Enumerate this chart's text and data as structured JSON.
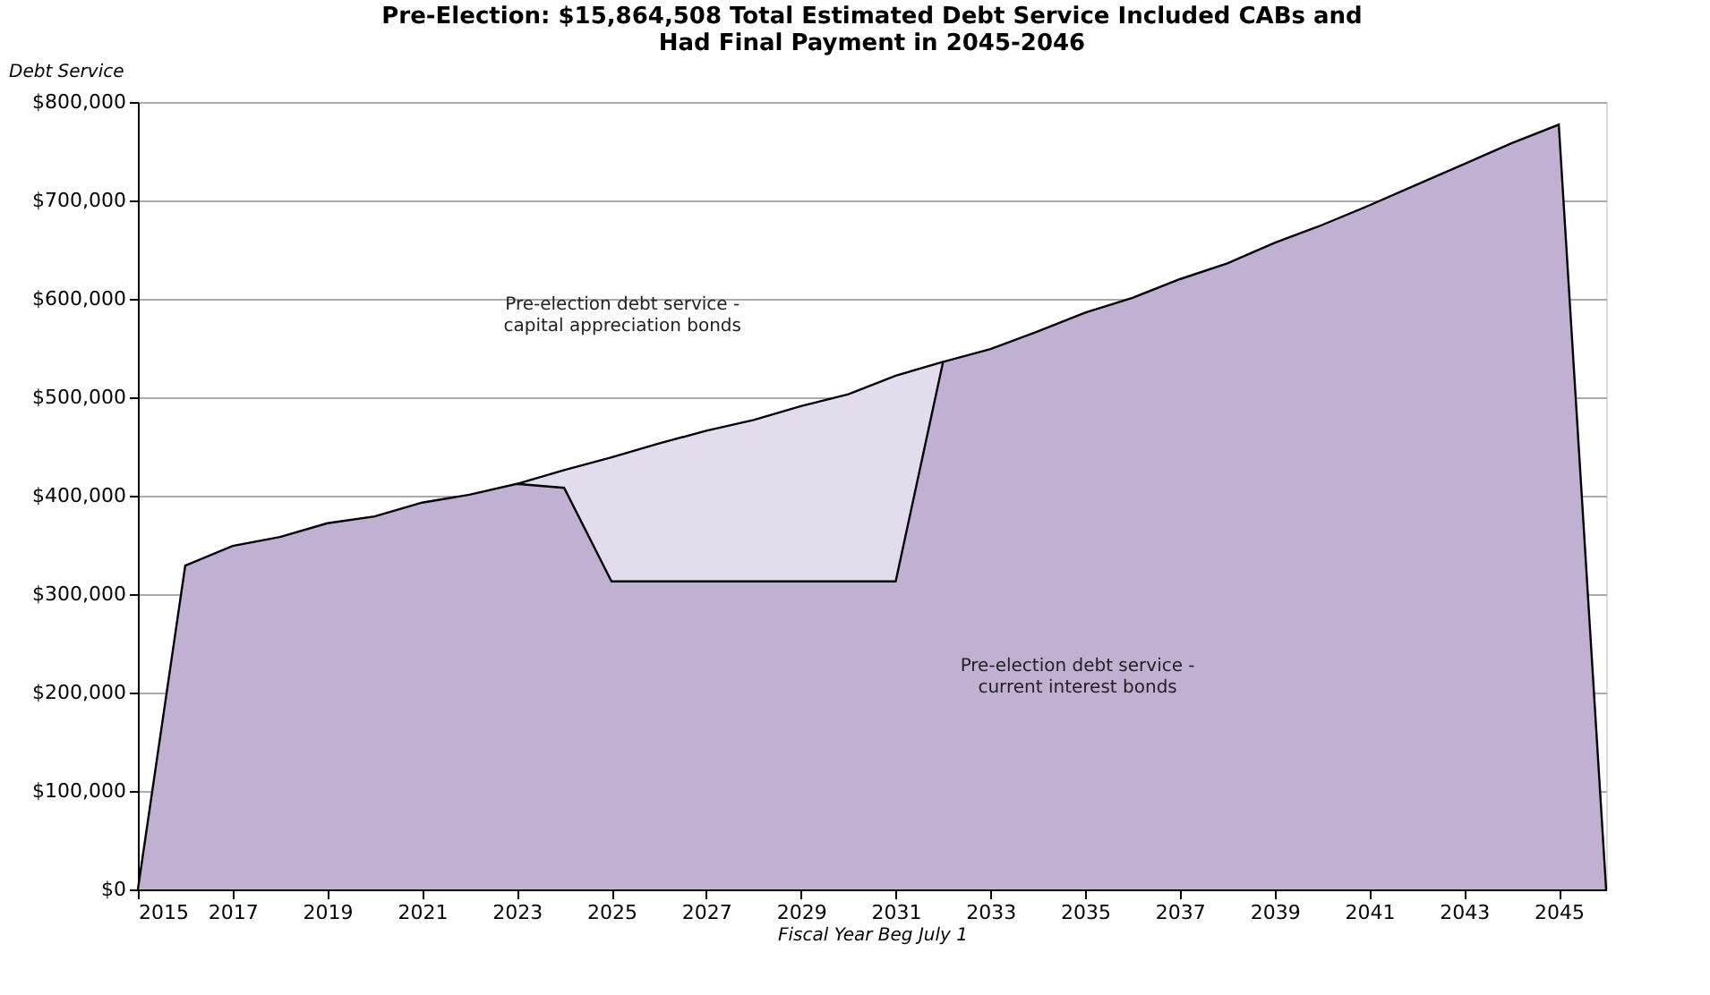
{
  "chart_data": {
    "type": "area",
    "title": "Pre-Election:  $15,864,508 Total Estimated Debt Service Included CABs and\nHad Final Payment in 2045-2046",
    "ylabel": "Debt Service",
    "xlabel": "Fiscal Year Beg July 1",
    "grid": "y",
    "xlim": [
      2015,
      2046
    ],
    "xticks": [
      2015,
      2017,
      2019,
      2021,
      2023,
      2025,
      2027,
      2029,
      2031,
      2033,
      2035,
      2037,
      2039,
      2041,
      2043,
      2045
    ],
    "ylim": [
      0,
      800000
    ],
    "yticks": [
      {
        "value": 0,
        "label": "$0"
      },
      {
        "value": 100000,
        "label": "$100,000"
      },
      {
        "value": 200000,
        "label": "$200,000"
      },
      {
        "value": 300000,
        "label": "$300,000"
      },
      {
        "value": 400000,
        "label": "$400,000"
      },
      {
        "value": 500000,
        "label": "$500,000"
      },
      {
        "value": 600000,
        "label": "$600,000"
      },
      {
        "value": 700000,
        "label": "$700,000"
      },
      {
        "value": 800000,
        "label": "$800,000"
      }
    ],
    "series": [
      {
        "color": "#e3dcec",
        "x": [
          2023,
          2024,
          2025,
          2026,
          2027,
          2028,
          2029,
          2030,
          2031,
          2032
        ],
        "values": [
          412000,
          426000,
          439000,
          453000,
          466000,
          477000,
          491000,
          503000,
          522000,
          536000
        ]
      },
      {
        "color": "#c0b0d2",
        "x": [
          2015,
          2016,
          2017,
          2018,
          2019,
          2020,
          2021,
          2022,
          2023,
          2024,
          2025,
          2026,
          2027,
          2028,
          2029,
          2030,
          2031,
          2032,
          2033,
          2034,
          2035,
          2036,
          2037,
          2038,
          2039,
          2040,
          2041,
          2042,
          2043,
          2044,
          2045,
          2046
        ],
        "values": [
          0,
          329000,
          349000,
          358000,
          372000,
          379000,
          393000,
          401000,
          412000,
          408000,
          313000,
          313000,
          313000,
          313000,
          313000,
          313000,
          313000,
          536000,
          549000,
          567000,
          586000,
          601000,
          620000,
          636000,
          657000,
          675000,
          695000,
          716000,
          737000,
          758000,
          777000,
          0
        ]
      }
    ],
    "annotations": [
      "Pre-election debt service -\ncapital appreciation bonds",
      "Pre-election debt service -\ncurrent interest bonds"
    ]
  }
}
